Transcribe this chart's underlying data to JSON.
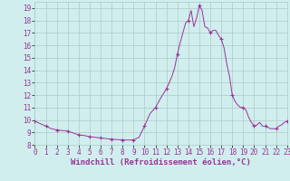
{
  "x": [
    0,
    0.5,
    1,
    1.5,
    2,
    2.5,
    3,
    3.5,
    4,
    4.5,
    5,
    5.5,
    6,
    6.5,
    7,
    7.5,
    8,
    8.5,
    9,
    9.5,
    10,
    10.5,
    11,
    11.5,
    12,
    12.25,
    12.5,
    12.75,
    13,
    13.25,
    13.5,
    13.75,
    14,
    14.25,
    14.5,
    14.75,
    15,
    15.25,
    15.5,
    15.75,
    16,
    16.25,
    16.5,
    16.75,
    17,
    17.25,
    17.5,
    17.75,
    18,
    18.25,
    18.5,
    18.75,
    19,
    19.25,
    19.5,
    19.75,
    20,
    20.25,
    20.5,
    20.75,
    21,
    21.25,
    21.5,
    21.75,
    22,
    22.25,
    22.5,
    22.75,
    23
  ],
  "y": [
    9.9,
    9.7,
    9.5,
    9.3,
    9.2,
    9.15,
    9.1,
    8.95,
    8.8,
    8.75,
    8.65,
    8.6,
    8.55,
    8.5,
    8.45,
    8.42,
    8.4,
    8.38,
    8.4,
    8.6,
    9.5,
    10.5,
    11.0,
    11.8,
    12.5,
    13.0,
    13.5,
    14.2,
    15.3,
    16.2,
    17.0,
    17.8,
    18.0,
    18.8,
    17.5,
    18.2,
    19.2,
    18.8,
    17.5,
    17.4,
    17.0,
    17.2,
    17.2,
    16.8,
    16.5,
    15.8,
    14.5,
    13.5,
    12.0,
    11.5,
    11.2,
    11.0,
    11.0,
    10.8,
    10.2,
    9.8,
    9.5,
    9.6,
    9.8,
    9.5,
    9.5,
    9.4,
    9.3,
    9.3,
    9.3,
    9.5,
    9.6,
    9.8,
    9.9
  ],
  "marker_x": [
    0,
    1,
    2,
    3,
    4,
    5,
    6,
    7,
    8,
    9,
    10,
    11,
    12,
    13,
    14,
    15,
    16,
    17,
    18,
    19,
    20,
    21,
    22,
    23
  ],
  "marker_y": [
    9.9,
    9.5,
    9.2,
    9.1,
    8.8,
    8.65,
    8.55,
    8.45,
    8.4,
    8.4,
    9.5,
    11.0,
    12.5,
    15.3,
    18.0,
    19.2,
    17.0,
    16.5,
    12.0,
    11.0,
    9.5,
    9.5,
    9.3,
    9.9
  ],
  "line_color": "#993399",
  "marker_color": "#993399",
  "bg_color": "#d0eeee",
  "grid_color": "#b0c8c8",
  "xlabel": "Windchill (Refroidissement éolien,°C)",
  "xlim": [
    0,
    23
  ],
  "ylim": [
    8,
    19.5
  ],
  "yticks": [
    8,
    9,
    10,
    11,
    12,
    13,
    14,
    15,
    16,
    17,
    18,
    19
  ],
  "xticks": [
    0,
    1,
    2,
    3,
    4,
    5,
    6,
    7,
    8,
    9,
    10,
    11,
    12,
    13,
    14,
    15,
    16,
    17,
    18,
    19,
    20,
    21,
    22,
    23
  ],
  "tick_fontsize": 5.5,
  "xlabel_fontsize": 6.5
}
